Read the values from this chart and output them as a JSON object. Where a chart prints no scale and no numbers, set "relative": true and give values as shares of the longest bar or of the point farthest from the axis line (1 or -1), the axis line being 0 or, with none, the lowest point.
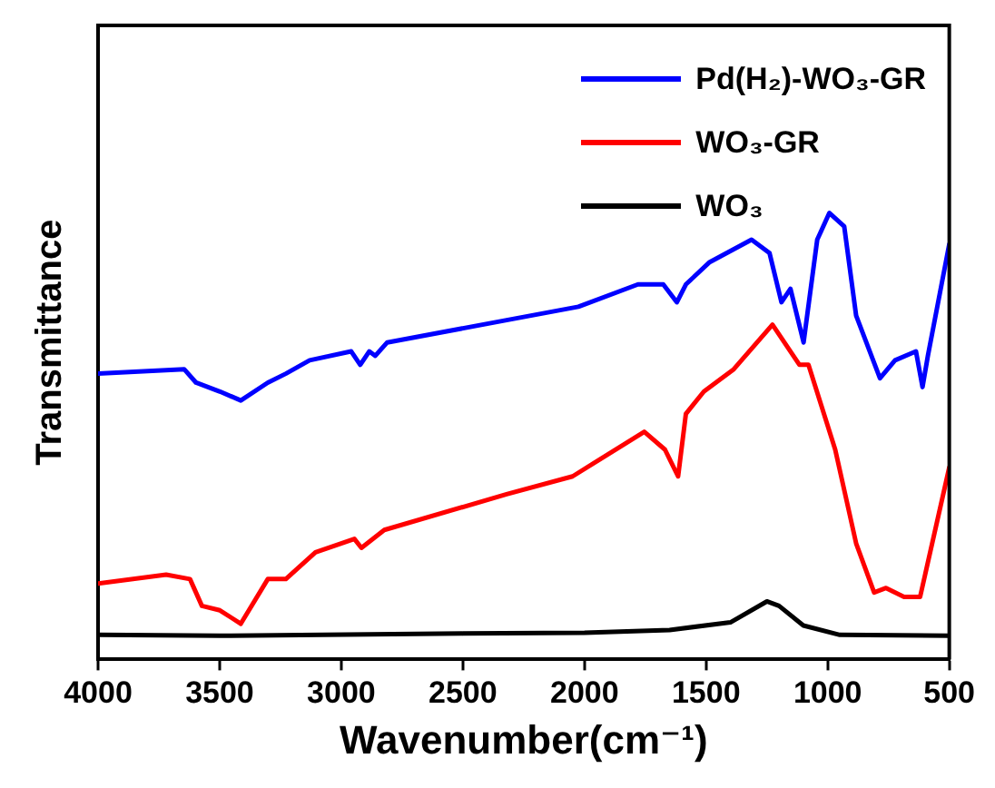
{
  "chart_data": {
    "type": "line",
    "xlabel": "Wavenumber(cm⁻¹)",
    "ylabel": "Transmittance",
    "relative": true,
    "xlim": [
      4000,
      500
    ],
    "xticks": [
      4000,
      3500,
      3000,
      2500,
      2000,
      1500,
      1000,
      500
    ],
    "legend": "top right",
    "grid": false,
    "marker": "none",
    "line_style": "solid",
    "series": [
      {
        "name": "Pd(H₂)-WO₃-GR",
        "color": "#0000ff",
        "x": [
          4000,
          3646,
          3597,
          3499,
          3413,
          3302,
          3228,
          3130,
          2959,
          2922,
          2885,
          2860,
          2811,
          2320,
          2025,
          1780,
          1676,
          1620,
          1583,
          1485,
          1313,
          1239,
          1190,
          1153,
          1099,
          1043,
          993,
          932,
          883,
          785,
          723,
          637,
          610,
          588,
          500
        ],
        "values": [
          0.64,
          0.65,
          0.62,
          0.6,
          0.58,
          0.62,
          0.64,
          0.67,
          0.69,
          0.66,
          0.69,
          0.68,
          0.71,
          0.76,
          0.79,
          0.84,
          0.84,
          0.8,
          0.84,
          0.89,
          0.94,
          0.91,
          0.8,
          0.83,
          0.71,
          0.94,
          1.0,
          0.97,
          0.77,
          0.63,
          0.67,
          0.69,
          0.61,
          0.68,
          0.93
        ]
      },
      {
        "name": "WO₃-GR",
        "color": "#ff0000",
        "x": [
          4000,
          3720,
          3622,
          3573,
          3499,
          3413,
          3302,
          3228,
          3106,
          2946,
          2917,
          2823,
          2320,
          2049,
          1754,
          1669,
          1615,
          1583,
          1509,
          1386,
          1227,
          1116,
          1079,
          969,
          883,
          809,
          760,
          686,
          620,
          500
        ],
        "values": [
          0.17,
          0.19,
          0.18,
          0.12,
          0.11,
          0.08,
          0.18,
          0.18,
          0.24,
          0.27,
          0.25,
          0.29,
          0.37,
          0.41,
          0.51,
          0.47,
          0.41,
          0.55,
          0.6,
          0.65,
          0.75,
          0.66,
          0.66,
          0.47,
          0.26,
          0.15,
          0.16,
          0.14,
          0.14,
          0.43
        ]
      },
      {
        "name": "WO₃",
        "color": "#000000",
        "x": [
          4000,
          3500,
          2500,
          2000,
          1650,
          1400,
          1250,
          1200,
          1100,
          950,
          500
        ],
        "values": [
          0.055,
          0.053,
          0.058,
          0.06,
          0.066,
          0.083,
          0.13,
          0.12,
          0.076,
          0.055,
          0.053
        ]
      }
    ]
  }
}
